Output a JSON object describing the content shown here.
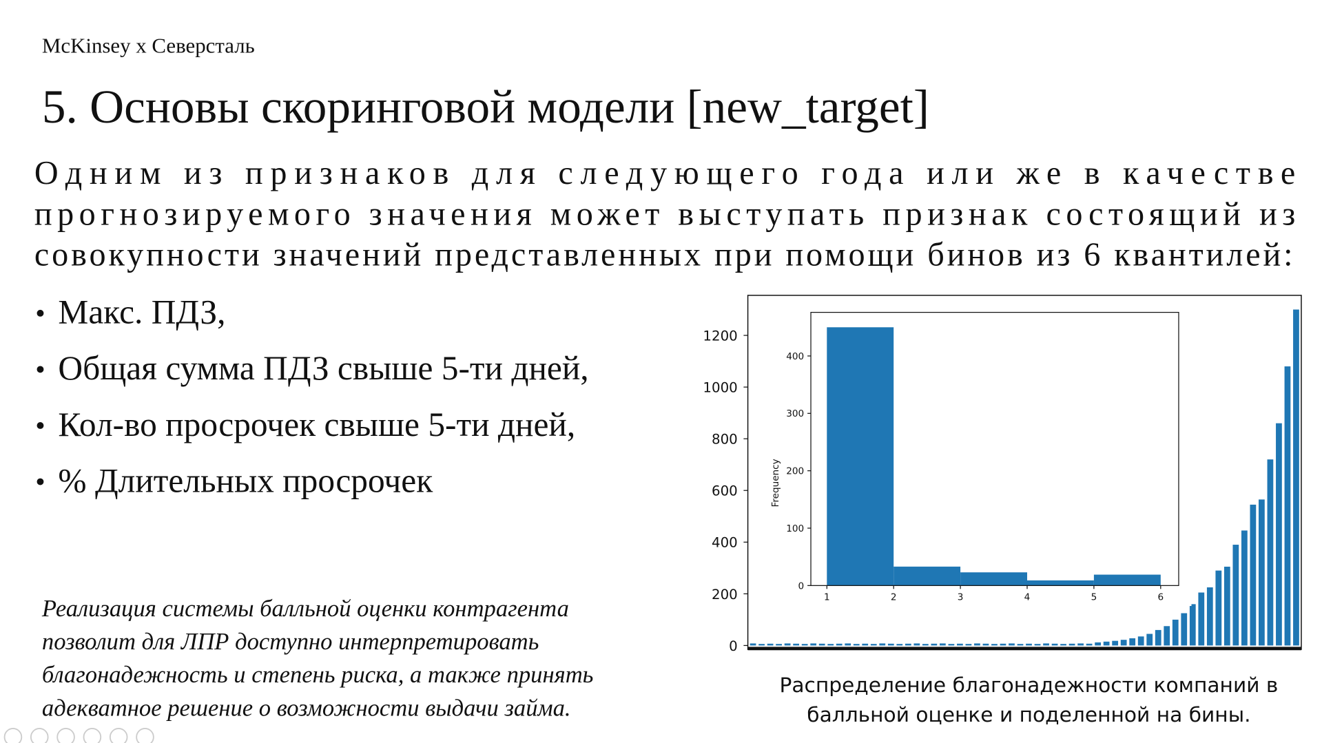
{
  "header": {
    "brand": "McKinsey  x  Северсталь"
  },
  "title": "5. Основы скоринговой модели [new_target]",
  "paragraph": [
    "Одним из признаков для следующего года или же в качестве",
    "прогнозируемого значения может выступать признак состоящий из",
    "совокупности значений представленных при помощи бинов из 6 квантилей:"
  ],
  "bullets": [
    "Макс. ПДЗ,",
    "Общая сумма ПДЗ свыше 5-ти дней,",
    "Кол-во просрочек свыше 5-ти дней,",
    "% Длительных просрочек"
  ],
  "note": [
    "Реализация  системы балльной оценки контрагента",
    "позволит для ЛПР доступно интерпретировать",
    "благонадежность и степень риска, а также принять",
    "адекватное решение о возможности выдачи займа."
  ],
  "caption": [
    "Распределение  благонадежности компаний в",
    "балльной оценке и поделенной на бины."
  ],
  "chart_data": [
    {
      "type": "bar",
      "color": "#1f77b4",
      "values": [
        8,
        6,
        7,
        6,
        8,
        7,
        6,
        8,
        7,
        6,
        7,
        8,
        6,
        7,
        6,
        8,
        7,
        6,
        7,
        8,
        6,
        7,
        8,
        6,
        7,
        6,
        8,
        7,
        6,
        7,
        8,
        6,
        7,
        6,
        8,
        7,
        6,
        7,
        8,
        7,
        12,
        15,
        18,
        22,
        28,
        35,
        45,
        60,
        75,
        100,
        125,
        160,
        205,
        225,
        290,
        305,
        390,
        445,
        545,
        565,
        720,
        860,
        1080,
        1300
      ],
      "ylim": [
        -15,
        1355
      ],
      "yticks": [
        0,
        200,
        400,
        600,
        800,
        1000,
        1200
      ]
    },
    {
      "type": "histogram",
      "color": "#1f77b4",
      "bins": [
        1,
        2,
        3,
        4,
        5,
        6
      ],
      "values": [
        450,
        33,
        23,
        9,
        19
      ],
      "xlim": [
        0.76,
        6.27
      ],
      "ylim": [
        0,
        476
      ],
      "xticks": [
        1,
        2,
        3,
        4,
        5,
        6
      ],
      "yticks": [
        0,
        100,
        200,
        300,
        400
      ],
      "ylabel": "Frequency"
    }
  ]
}
